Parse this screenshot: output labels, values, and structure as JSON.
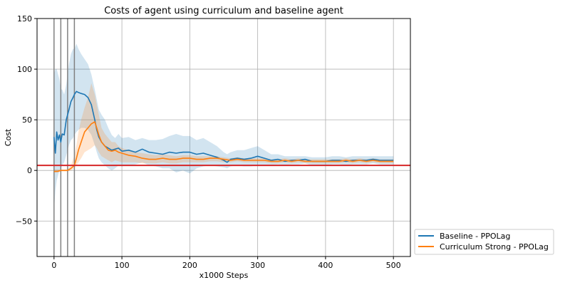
{
  "chart_data": {
    "type": "line",
    "title": "Costs of agent using curriculum and baseline agent",
    "xlabel": "x1000 Steps",
    "ylabel": "Cost",
    "xlim": [
      -25,
      525
    ],
    "ylim": [
      -85,
      150
    ],
    "x_ticks": [
      0,
      100,
      200,
      300,
      400,
      500
    ],
    "y_ticks": [
      -50,
      0,
      50,
      100,
      150
    ],
    "x_tick_labels": [
      "0",
      "100",
      "200",
      "300",
      "400",
      "500"
    ],
    "y_tick_labels": [
      "−50",
      "0",
      "50",
      "100",
      "150"
    ],
    "grid": true,
    "legend_position": "lower-right outside",
    "threshold": {
      "y": 5,
      "color": "#d62728"
    },
    "curriculum_phase_lines": [
      0,
      10,
      20,
      30
    ],
    "series": [
      {
        "name": "Baseline - PPOLag",
        "color": "#1f77b4",
        "x": [
          0,
          2,
          4,
          6,
          8,
          10,
          12,
          15,
          18,
          20,
          22,
          25,
          28,
          30,
          33,
          36,
          40,
          45,
          50,
          55,
          60,
          63,
          66,
          70,
          75,
          80,
          85,
          90,
          95,
          100,
          110,
          120,
          130,
          140,
          150,
          160,
          170,
          180,
          190,
          200,
          210,
          220,
          230,
          240,
          250,
          255,
          260,
          270,
          280,
          290,
          300,
          310,
          320,
          330,
          340,
          350,
          360,
          370,
          380,
          390,
          400,
          410,
          420,
          430,
          440,
          450,
          460,
          470,
          480,
          490,
          500
        ],
        "mean": [
          33,
          17,
          38,
          30,
          35,
          28,
          36,
          35,
          50,
          55,
          60,
          68,
          72,
          75,
          78,
          77,
          76,
          75,
          72,
          65,
          50,
          40,
          33,
          28,
          24,
          22,
          20,
          21,
          22,
          19,
          20,
          18,
          21,
          18,
          17,
          16,
          18,
          17,
          18,
          18,
          16,
          17,
          15,
          13,
          10,
          8,
          11,
          12,
          11,
          12,
          14,
          12,
          10,
          11,
          9,
          10,
          10,
          11,
          9,
          9,
          9,
          10,
          10,
          9,
          10,
          10,
          10,
          11,
          10,
          10,
          10
        ],
        "upper": [
          95,
          100,
          100,
          95,
          90,
          80,
          80,
          75,
          85,
          95,
          105,
          115,
          120,
          120,
          125,
          120,
          115,
          110,
          105,
          95,
          80,
          70,
          60,
          55,
          50,
          42,
          35,
          32,
          36,
          32,
          33,
          30,
          32,
          30,
          30,
          31,
          34,
          36,
          34,
          34,
          30,
          32,
          28,
          24,
          18,
          16,
          18,
          20,
          20,
          22,
          24,
          20,
          16,
          16,
          14,
          14,
          14,
          14,
          13,
          13,
          13,
          14,
          14,
          13,
          14,
          14,
          14,
          14,
          14,
          14,
          14
        ],
        "lower": [
          -40,
          -20,
          -10,
          -5,
          0,
          2,
          5,
          8,
          15,
          20,
          25,
          30,
          32,
          35,
          38,
          40,
          42,
          42,
          40,
          35,
          25,
          18,
          12,
          8,
          5,
          2,
          0,
          2,
          5,
          4,
          5,
          6,
          8,
          5,
          4,
          2,
          2,
          -2,
          0,
          -3,
          2,
          4,
          5,
          4,
          3,
          2,
          4,
          5,
          4,
          4,
          5,
          5,
          5,
          6,
          5,
          6,
          6,
          7,
          5,
          5,
          5,
          6,
          6,
          5,
          6,
          6,
          6,
          7,
          6,
          6,
          6
        ]
      },
      {
        "name": "Curriculum Strong - PPOLag",
        "color": "#ff7f0e",
        "x": [
          0,
          5,
          10,
          15,
          20,
          25,
          30,
          33,
          36,
          40,
          45,
          50,
          55,
          60,
          63,
          66,
          70,
          75,
          80,
          85,
          90,
          95,
          100,
          110,
          120,
          130,
          140,
          150,
          160,
          170,
          180,
          190,
          200,
          210,
          220,
          230,
          240,
          250,
          260,
          270,
          280,
          290,
          300,
          310,
          320,
          330,
          340,
          350,
          360,
          370,
          380,
          390,
          400,
          410,
          420,
          430,
          440,
          450,
          460,
          470,
          480,
          490,
          500
        ],
        "mean": [
          -1,
          -1,
          0,
          0,
          0,
          2,
          5,
          12,
          20,
          28,
          38,
          42,
          46,
          48,
          42,
          35,
          28,
          24,
          20,
          19,
          20,
          18,
          17,
          15,
          14,
          12,
          11,
          11,
          12,
          11,
          11,
          12,
          12,
          11,
          11,
          12,
          12,
          11,
          10,
          11,
          10,
          10,
          10,
          10,
          9,
          9,
          10,
          9,
          10,
          9,
          9,
          9,
          9,
          9,
          9,
          10,
          9,
          10,
          9,
          10,
          9,
          9,
          9
        ],
        "upper": [
          1,
          1,
          1,
          1,
          1,
          5,
          15,
          25,
          38,
          50,
          62,
          72,
          86,
          75,
          65,
          55,
          42,
          36,
          32,
          28,
          28,
          24,
          22,
          20,
          18,
          17,
          16,
          15,
          16,
          15,
          14,
          15,
          15,
          14,
          14,
          14,
          14,
          13,
          12,
          13,
          12,
          12,
          12,
          12,
          11,
          11,
          12,
          11,
          12,
          11,
          11,
          11,
          11,
          11,
          11,
          12,
          11,
          12,
          11,
          12,
          11,
          11,
          11
        ],
        "lower": [
          -2,
          -2,
          -1,
          -1,
          -1,
          0,
          2,
          5,
          8,
          12,
          18,
          20,
          22,
          25,
          22,
          18,
          14,
          12,
          10,
          8,
          10,
          9,
          8,
          8,
          8,
          7,
          7,
          7,
          8,
          7,
          7,
          8,
          8,
          8,
          8,
          9,
          9,
          8,
          8,
          9,
          8,
          8,
          8,
          8,
          7,
          7,
          8,
          7,
          8,
          7,
          7,
          7,
          7,
          7,
          7,
          8,
          7,
          8,
          7,
          8,
          7,
          7,
          7
        ]
      }
    ]
  }
}
